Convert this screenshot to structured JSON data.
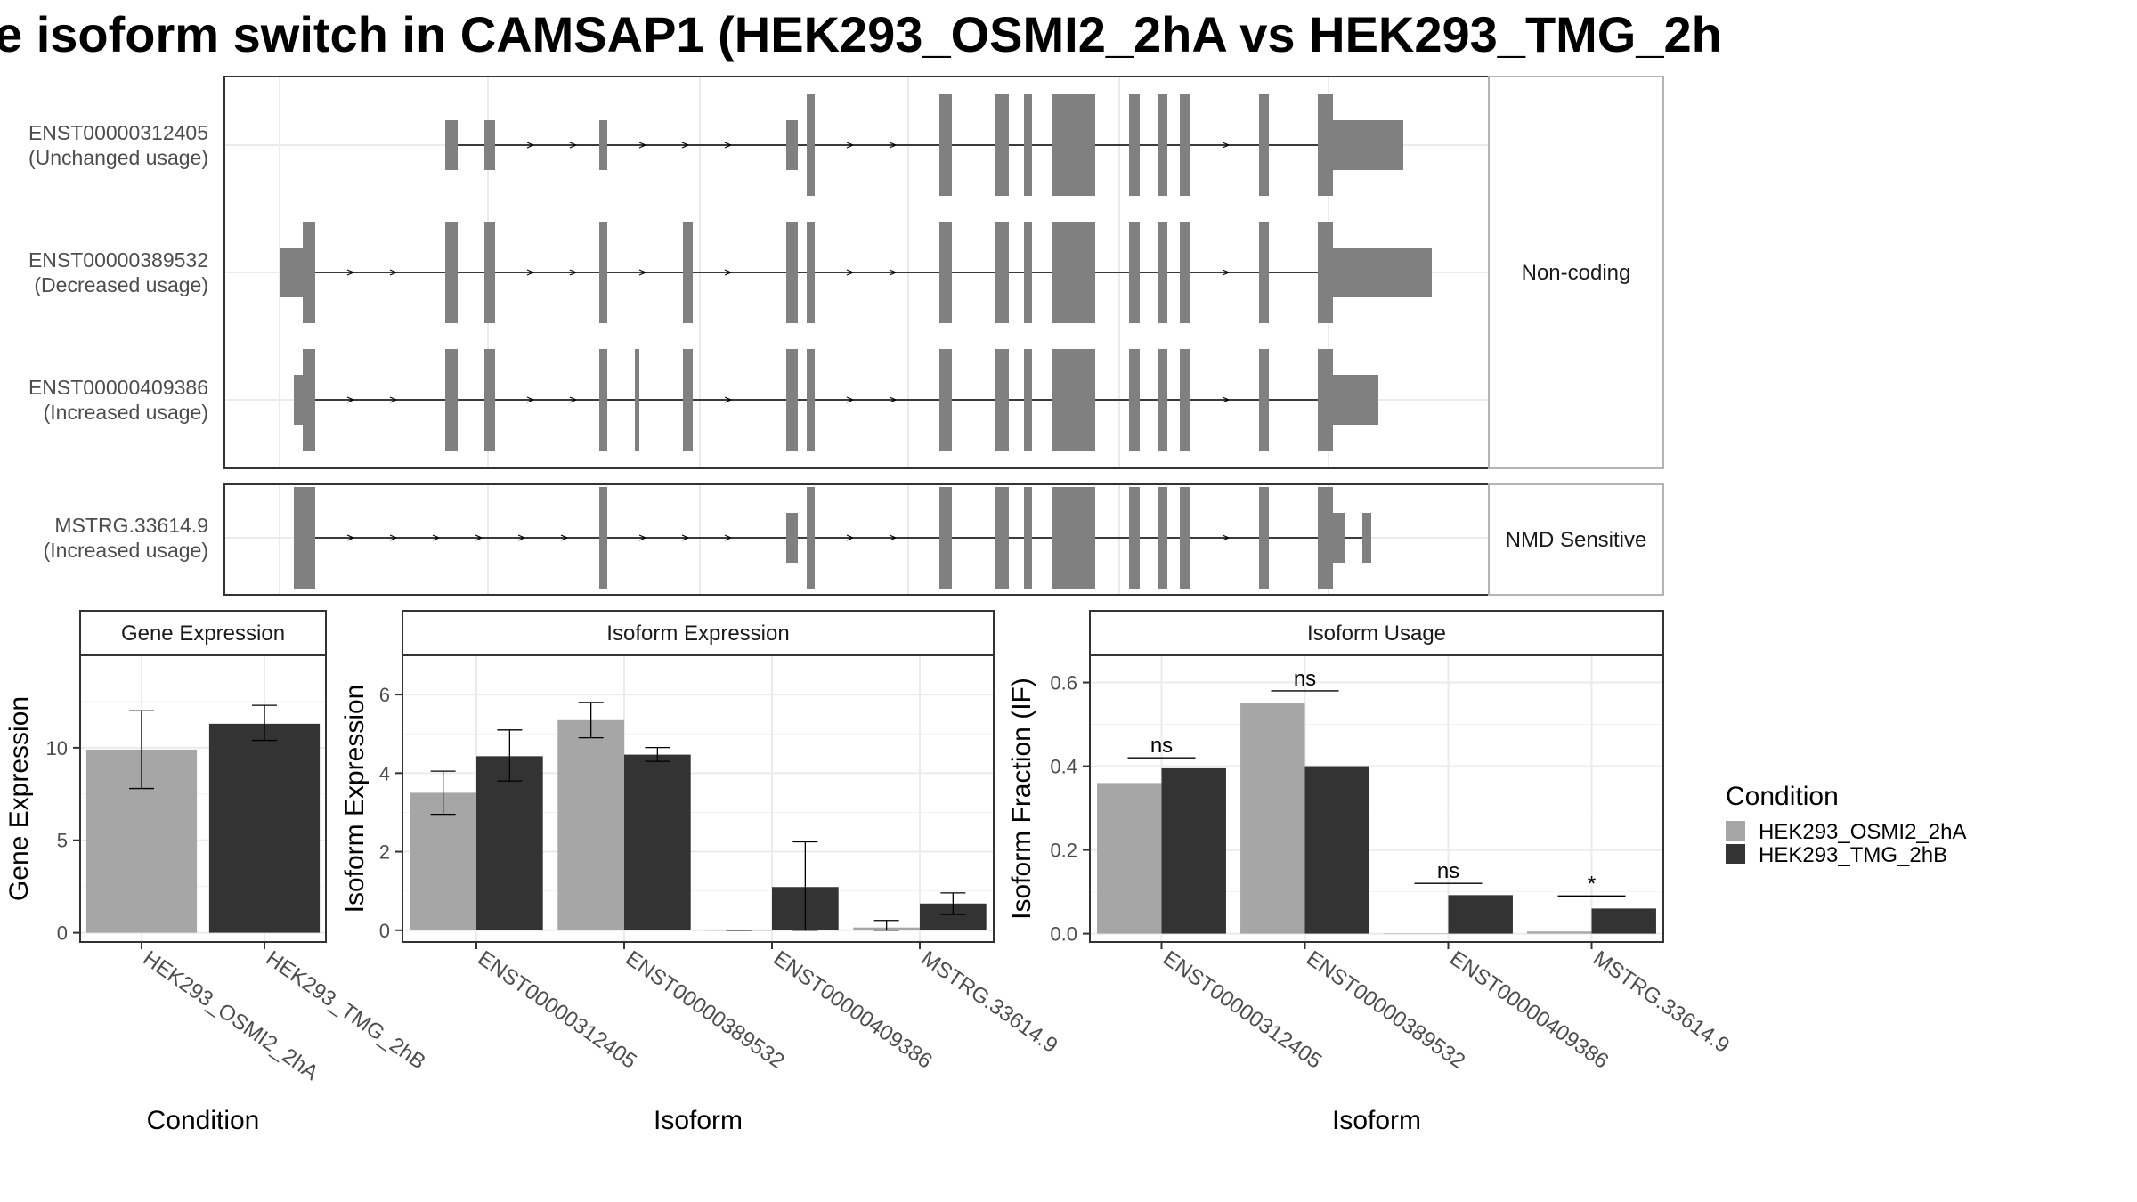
{
  "title": "e isoform switch in CAMSAP1 (HEK293_OSMI2_2hA vs HEK293_TMG_2h",
  "colors": {
    "osmi": "#a6a6a6",
    "tmg": "#333333",
    "exon": "#808080",
    "grid": "#ebebeb",
    "strip_bg": "#ffffff",
    "border": "#333333"
  },
  "structure": {
    "facets": [
      {
        "label": "Non-coding",
        "transcripts": [
          {
            "name": "ENST00000312405",
            "usage": "(Unchanged usage)"
          },
          {
            "name": "ENST00000389532",
            "usage": "(Decreased usage)"
          },
          {
            "name": "ENST00000409386",
            "usage": "(Increased usage)"
          }
        ]
      },
      {
        "label": "NMD Sensitive",
        "transcripts": [
          {
            "name": "MSTRG.33614.9",
            "usage": "(Increased usage)"
          }
        ]
      }
    ]
  },
  "legend": {
    "title": "Condition",
    "items": [
      {
        "label": "HEK293_OSMI2_2hA",
        "color": "#a6a6a6"
      },
      {
        "label": "HEK293_TMG_2hB",
        "color": "#333333"
      }
    ]
  },
  "chart_data": [
    {
      "type": "bar",
      "strip": "Gene Expression",
      "xlabel": "Condition",
      "ylabel": "Gene Expression",
      "categories": [
        "HEK293_OSMI2_2hA",
        "HEK293_TMG_2hB"
      ],
      "values": [
        9.9,
        11.3
      ],
      "error": [
        [
          7.8,
          12.0
        ],
        [
          10.4,
          12.3
        ]
      ],
      "yticks": [
        "0",
        "5",
        "10"
      ],
      "ylim": [
        -0.5,
        15
      ]
    },
    {
      "type": "bar",
      "strip": "Isoform Expression",
      "xlabel": "Isoform",
      "ylabel": "Isoform Expression",
      "categories": [
        "ENST00000312405",
        "ENST00000389532",
        "ENST00000409386",
        "MSTRG.33614.9"
      ],
      "series": [
        {
          "name": "HEK293_OSMI2_2hA",
          "values": [
            3.5,
            5.35,
            0.0,
            0.07
          ],
          "error": [
            [
              2.95,
              4.05
            ],
            [
              4.9,
              5.8
            ],
            [
              0.0,
              0.0
            ],
            [
              0.0,
              0.25
            ]
          ]
        },
        {
          "name": "HEK293_TMG_2hB",
          "values": [
            4.43,
            4.47,
            1.1,
            0.68
          ],
          "error": [
            [
              3.8,
              5.1
            ],
            [
              4.3,
              4.65
            ],
            [
              0.0,
              2.25
            ],
            [
              0.4,
              0.95
            ]
          ]
        }
      ],
      "yticks": [
        "0",
        "2",
        "4",
        "6"
      ],
      "ylim": [
        -0.3,
        7.0
      ]
    },
    {
      "type": "bar",
      "strip": "Isoform Usage",
      "xlabel": "Isoform",
      "ylabel": "Isoform Fraction (IF)",
      "categories": [
        "ENST00000312405",
        "ENST00000389532",
        "ENST00000409386",
        "MSTRG.33614.9"
      ],
      "series": [
        {
          "name": "HEK293_OSMI2_2hA",
          "values": [
            0.36,
            0.55,
            0.0,
            0.005
          ]
        },
        {
          "name": "HEK293_TMG_2hB",
          "values": [
            0.395,
            0.4,
            0.092,
            0.06
          ]
        }
      ],
      "significance": [
        {
          "label": "ns",
          "y": 0.42
        },
        {
          "label": "ns",
          "y": 0.58
        },
        {
          "label": "ns",
          "y": 0.12
        },
        {
          "label": "*",
          "y": 0.09
        }
      ],
      "yticks": [
        "0.0",
        "0.2",
        "0.4",
        "0.6"
      ],
      "ylim": [
        -0.02,
        0.665
      ]
    }
  ]
}
